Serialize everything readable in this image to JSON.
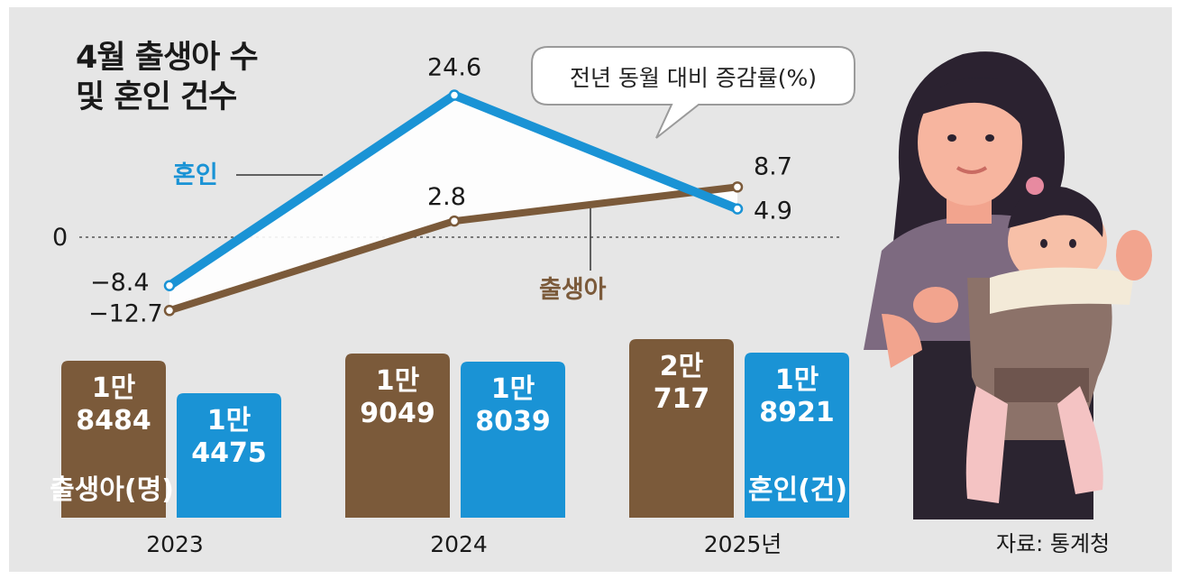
{
  "title_line1": "4월 출생아 수",
  "title_line2": "및 혼인 건수",
  "callout": "전년 동월 대비 증감률(%)",
  "zero_label": "0",
  "source": "자료: 통계청",
  "colors": {
    "birth": "#7b5a3a",
    "marriage": "#1a93d5",
    "background": "#e6e6e6"
  },
  "chart_data": [
    {
      "type": "line",
      "title": "",
      "categories": [
        "2023",
        "2024",
        "2025년"
      ],
      "ylabel": "전년 동월 대비 증감률(%)",
      "ylim": [
        -12.7,
        24.6
      ],
      "series": [
        {
          "name": "혼인",
          "values": [
            -8.4,
            24.6,
            4.9
          ],
          "labels": [
            "−8.4",
            "24.6",
            "4.9"
          ],
          "color": "#1a93d5"
        },
        {
          "name": "출생아",
          "values": [
            -12.7,
            2.8,
            8.7
          ],
          "labels": [
            "−12.7",
            "2.8",
            "8.7"
          ],
          "color": "#7b5a3a"
        }
      ]
    },
    {
      "type": "bar",
      "categories": [
        "2023",
        "2024",
        "2025년"
      ],
      "series": [
        {
          "name": "출생아(명)",
          "values": [
            18484,
            19049,
            20717
          ],
          "labels": [
            [
              "1만",
              "8484"
            ],
            [
              "1만",
              "9049"
            ],
            [
              "2만",
              "717"
            ]
          ],
          "color": "#7b5a3a"
        },
        {
          "name": "혼인(건)",
          "values": [
            14475,
            18039,
            18921
          ],
          "labels": [
            [
              "1만",
              "4475"
            ],
            [
              "1만",
              "8039"
            ],
            [
              "1만",
              "8921"
            ]
          ],
          "color": "#1a93d5"
        }
      ]
    }
  ],
  "illustration": "mother-holding-baby-illustration"
}
